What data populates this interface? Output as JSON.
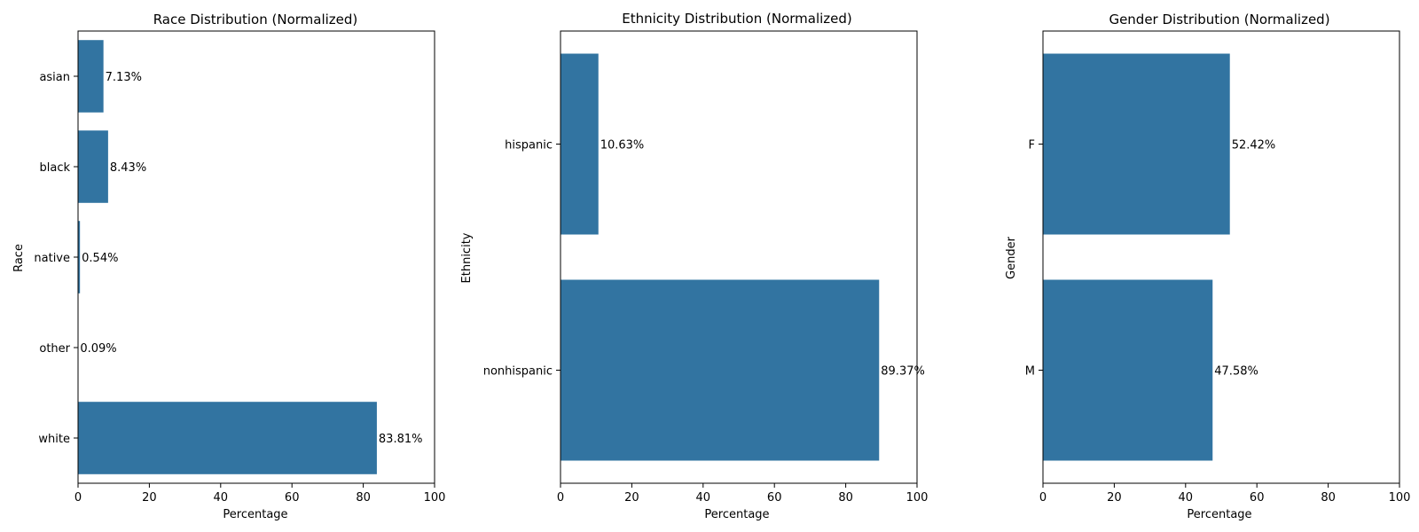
{
  "chart_data": [
    {
      "type": "bar",
      "orientation": "horizontal",
      "title": "Race Distribution (Normalized)",
      "xlabel": "Percentage",
      "ylabel": "Race",
      "xlim": [
        0,
        100
      ],
      "xticks": [
        "0",
        "20",
        "40",
        "60",
        "80",
        "100"
      ],
      "categories": [
        "asian",
        "black",
        "native",
        "other",
        "white"
      ],
      "values": [
        7.13,
        8.43,
        0.54,
        0.09,
        83.81
      ],
      "data_labels": [
        "7.13%",
        "8.43%",
        "0.54%",
        "0.09%",
        "83.81%"
      ],
      "bar_color": "#3274a1",
      "grid": false
    },
    {
      "type": "bar",
      "orientation": "horizontal",
      "title": "Ethnicity Distribution (Normalized)",
      "xlabel": "Percentage",
      "ylabel": "Ethnicity",
      "xlim": [
        0,
        100
      ],
      "xticks": [
        "0",
        "20",
        "40",
        "60",
        "80",
        "100"
      ],
      "categories": [
        "hispanic",
        "nonhispanic"
      ],
      "values": [
        10.63,
        89.37
      ],
      "data_labels": [
        "10.63%",
        "89.37%"
      ],
      "bar_color": "#3274a1",
      "grid": false
    },
    {
      "type": "bar",
      "orientation": "horizontal",
      "title": "Gender Distribution (Normalized)",
      "xlabel": "Percentage",
      "ylabel": "Gender",
      "xlim": [
        0,
        100
      ],
      "xticks": [
        "0",
        "20",
        "40",
        "60",
        "80",
        "100"
      ],
      "categories": [
        "F",
        "M"
      ],
      "values": [
        52.42,
        47.58
      ],
      "data_labels": [
        "52.42%",
        "47.58%"
      ],
      "bar_color": "#3274a1",
      "grid": false
    }
  ]
}
